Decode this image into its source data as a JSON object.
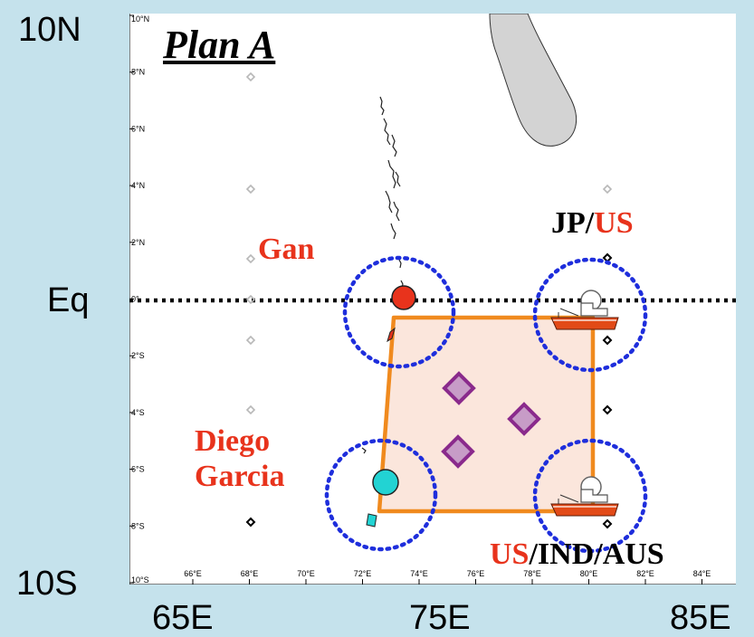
{
  "title": "Plan A",
  "outer_labels": {
    "lat_top": "10N",
    "lat_eq": "Eq",
    "lat_bottom": "10S",
    "lon_left": "65E",
    "lon_mid": "75E",
    "lon_right": "85E"
  },
  "lat_ticks": [
    "10°N",
    "8°N",
    "6°N",
    "4°N",
    "2°N",
    "0°",
    "2°S",
    "4°S",
    "6°S",
    "8°S",
    "10°S"
  ],
  "lon_ticks": [
    "66°E",
    "68°E",
    "70°E",
    "72°E",
    "74°E",
    "76°E",
    "78°E",
    "80°E",
    "82°E",
    "84°E"
  ],
  "sites": {
    "gan": "Gan",
    "diego_line1": "Diego",
    "diego_line2": "Garcia",
    "jp_part1": "JP/",
    "jp_part2": "US",
    "us_part1": "US",
    "us_part2": "/IND/AUS"
  },
  "colors": {
    "site_label_red": "#e8331c",
    "circle_blue": "#1e2edc",
    "array_orange": "#f08a1e",
    "array_fill": "#fbe6dc",
    "diamond_purple": "#8a2a8c",
    "gan_marker": "#e8331c",
    "diego_marker": "#22d3d3",
    "land_gray": "#d3d3d3"
  },
  "icons": [
    "ship-icon",
    "mooring-diamond-icon",
    "gan-site-marker",
    "diego-garcia-site-marker"
  ]
}
